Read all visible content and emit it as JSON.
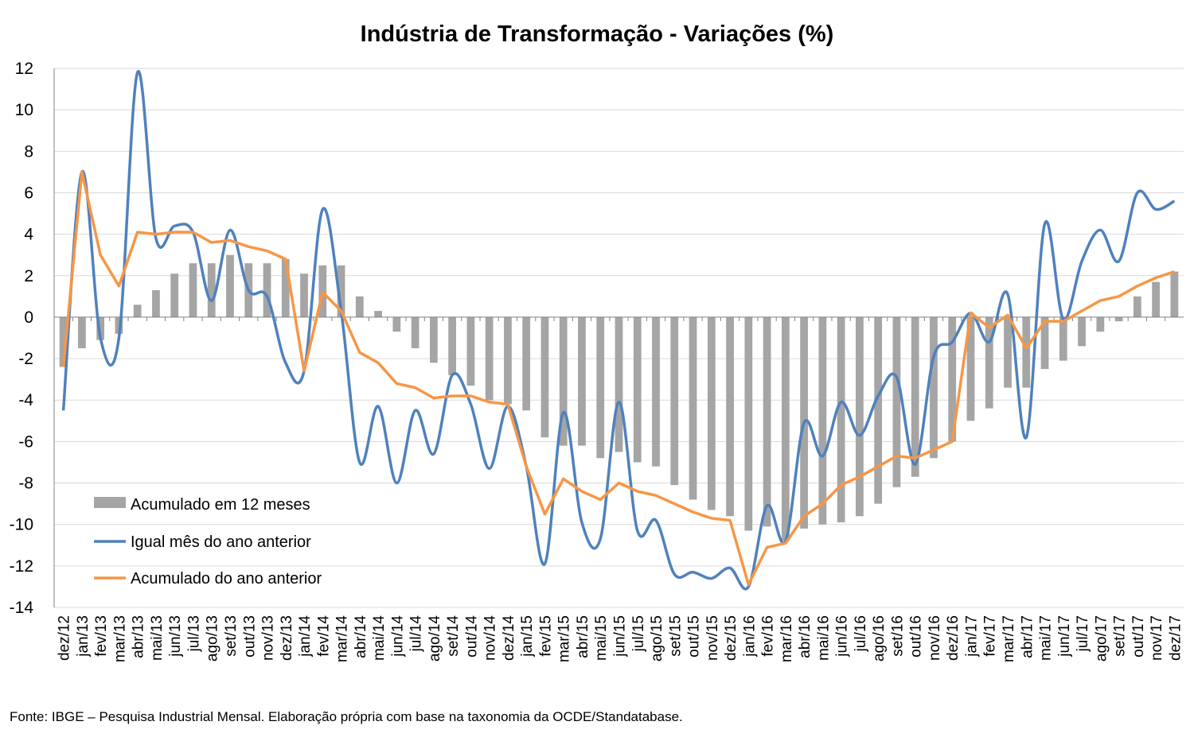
{
  "chart_data": {
    "type": "bar+line",
    "title": "Indústria de Transformação - Variações (%)",
    "xlabel": "",
    "ylabel": "",
    "ylim": [
      -14,
      12
    ],
    "yticks": [
      12,
      10,
      8,
      6,
      4,
      2,
      0,
      -2,
      -4,
      -6,
      -8,
      -10,
      -12,
      -14
    ],
    "grid": "horizontal",
    "legend_position": "bottom-left",
    "categories": [
      "dez/12",
      "jan/13",
      "fev/13",
      "mar/13",
      "abr/13",
      "mai/13",
      "jun/13",
      "jul/13",
      "ago/13",
      "set/13",
      "out/13",
      "nov/13",
      "dez/13",
      "jan/14",
      "fev/14",
      "mar/14",
      "abr/14",
      "mai/14",
      "jun/14",
      "jul/14",
      "ago/14",
      "set/14",
      "out/14",
      "nov/14",
      "dez/14",
      "jan/15",
      "fev/15",
      "mar/15",
      "abr/15",
      "mai/15",
      "jun/15",
      "jul/15",
      "ago/15",
      "set/15",
      "out/15",
      "nov/15",
      "dez/15",
      "jan/16",
      "fev/16",
      "mar/16",
      "abr/16",
      "mai/16",
      "jun/16",
      "jul/16",
      "ago/16",
      "set/16",
      "out/16",
      "nov/16",
      "dez/16",
      "jan/17",
      "fev/17",
      "mar/17",
      "abr/17",
      "mai/17",
      "jun/17",
      "jul/17",
      "ago/17",
      "set/17",
      "out/17",
      "nov/17",
      "dez/17"
    ],
    "series": [
      {
        "name": "Acumulado em 12 meses",
        "type": "bar",
        "color": "#a5a5a5",
        "values": [
          -2.4,
          -1.5,
          -1.1,
          -0.8,
          0.6,
          1.3,
          2.1,
          2.6,
          2.6,
          3.0,
          2.6,
          2.6,
          2.8,
          2.1,
          2.5,
          2.5,
          1.0,
          0.3,
          -0.7,
          -1.5,
          -2.2,
          -2.8,
          -3.3,
          -4.0,
          -4.2,
          -4.5,
          -5.8,
          -6.2,
          -6.2,
          -6.8,
          -6.5,
          -7.0,
          -7.2,
          -8.1,
          -8.8,
          -9.3,
          -9.6,
          -10.3,
          -10.1,
          -10.8,
          -10.2,
          -10.0,
          -9.9,
          -9.6,
          -9.0,
          -8.2,
          -7.7,
          -6.8,
          -6.0,
          -5.0,
          -4.4,
          -3.4,
          -3.4,
          -2.5,
          -2.1,
          -1.4,
          -0.7,
          -0.2,
          1.0,
          1.7,
          2.2
        ]
      },
      {
        "name": "Igual mês do ano anterior",
        "type": "line",
        "color": "#4f81bd",
        "values": [
          -4.5,
          7.0,
          -1.0,
          -1.0,
          11.8,
          3.8,
          4.4,
          4.1,
          0.8,
          4.2,
          1.3,
          1.0,
          -2.2,
          -2.6,
          5.2,
          0.3,
          -7.0,
          -4.3,
          -8.0,
          -4.5,
          -6.6,
          -2.8,
          -4.2,
          -7.3,
          -4.3,
          -7.2,
          -11.9,
          -4.6,
          -9.9,
          -10.7,
          -4.1,
          -10.3,
          -9.8,
          -12.4,
          -12.3,
          -12.6,
          -12.1,
          -13.0,
          -9.1,
          -10.8,
          -5.1,
          -6.7,
          -4.1,
          -5.7,
          -3.8,
          -2.9,
          -7.1,
          -1.9,
          -1.2,
          0.2,
          -1.2,
          1.1,
          -5.8,
          4.5,
          -0.1,
          2.7,
          4.2,
          2.7,
          6.0,
          5.2,
          5.6
        ]
      },
      {
        "name": "Acumulado do ano anterior",
        "type": "line",
        "color": "#f79646",
        "values": [
          -2.4,
          7.0,
          3.0,
          1.5,
          4.1,
          4.0,
          4.1,
          4.1,
          3.6,
          3.7,
          3.4,
          3.2,
          2.8,
          -2.6,
          1.2,
          0.3,
          -1.7,
          -2.2,
          -3.2,
          -3.4,
          -3.9,
          -3.8,
          -3.8,
          -4.1,
          -4.2,
          -7.2,
          -9.5,
          -7.8,
          -8.4,
          -8.8,
          -8.0,
          -8.4,
          -8.6,
          -9.0,
          -9.4,
          -9.7,
          -9.8,
          -12.9,
          -11.1,
          -10.9,
          -9.6,
          -9.0,
          -8.1,
          -7.7,
          -7.2,
          -6.7,
          -6.8,
          -6.4,
          -6.0,
          0.2,
          -0.5,
          0.1,
          -1.5,
          -0.2,
          -0.2,
          0.3,
          0.8,
          1.0,
          1.5,
          1.9,
          2.2
        ]
      }
    ]
  },
  "source_text": "Fonte: IBGE – Pesquisa Industrial Mensal. Elaboração própria com base na taxonomia da OCDE/Standatabase."
}
